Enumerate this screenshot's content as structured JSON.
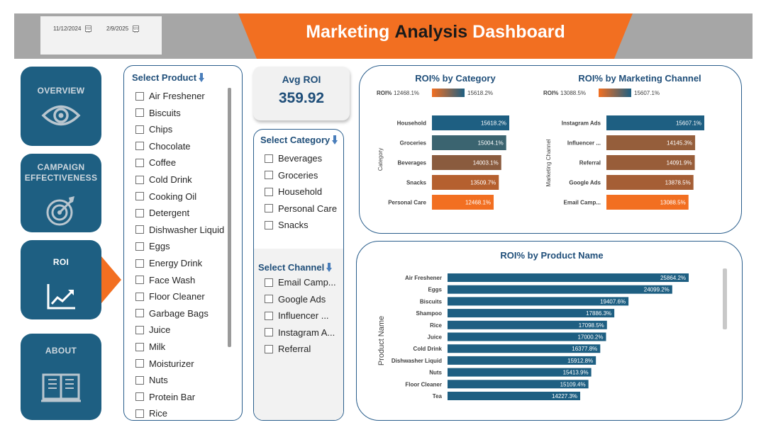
{
  "header": {
    "title_part1": "Marketing",
    "title_part2": "Analysis",
    "title_part3": "Dashboard",
    "start_date": "11/12/2024",
    "end_date": "2/9/2025"
  },
  "nav": {
    "overview": "OVERVIEW",
    "campaign_1": "CAMPAIGN",
    "campaign_2": "EFFECTIVENESS",
    "roi": "ROI",
    "about": "ABOUT"
  },
  "product_slicer": {
    "title": "Select Product",
    "items": [
      "Air Freshener",
      "Biscuits",
      "Chips",
      "Chocolate",
      "Coffee",
      "Cold Drink",
      "Cooking Oil",
      "Detergent",
      "Dishwasher Liquid",
      "Eggs",
      "Energy Drink",
      "Face Wash",
      "Floor Cleaner",
      "Garbage Bags",
      "Juice",
      "Milk",
      "Moisturizer",
      "Nuts",
      "Protein Bar",
      "Rice"
    ]
  },
  "kpi": {
    "label": "Avg ROI",
    "value": "359.92"
  },
  "category_slicer": {
    "title": "Select Category",
    "items": [
      "Beverages",
      "Groceries",
      "Household",
      "Personal Care",
      "Snacks"
    ]
  },
  "channel_slicer": {
    "title": "Select Channel",
    "items": [
      "Email Camp...",
      "Google Ads",
      "Influencer ...",
      "Instagram A...",
      "Referral"
    ]
  },
  "colors": {
    "navy": "#1e5f82",
    "orange": "#f26f21",
    "title_blue": "#1f4e79",
    "header_gray": "#a6a6a6"
  },
  "chart_data": [
    {
      "type": "bar",
      "orientation": "horizontal",
      "title": "ROI% by Category",
      "ylabel": "Category",
      "legend": {
        "label": "ROI%",
        "min": "12468.1%",
        "max": "15618.2%"
      },
      "categories": [
        "Household",
        "Groceries",
        "Beverages",
        "Snacks",
        "Personal Care"
      ],
      "values": [
        15618.2,
        15004.1,
        14003.1,
        13509.7,
        12468.1
      ],
      "value_labels": [
        "15618.2%",
        "15004.1%",
        "14003.1%",
        "13509.7%",
        "12468.1%"
      ],
      "colors": [
        "#1e5f82",
        "#3b6470",
        "#8a5b3e",
        "#b5602f",
        "#f26f21"
      ]
    },
    {
      "type": "bar",
      "orientation": "horizontal",
      "title": "ROI% by Marketing Channel",
      "ylabel": "Marketing Channel",
      "legend": {
        "label": "ROI%",
        "min": "13088.5%",
        "max": "15607.1%"
      },
      "categories": [
        "Instagram Ads",
        "Influencer ...",
        "Referral",
        "Google Ads",
        "Email Camp..."
      ],
      "values": [
        15607.1,
        14145.3,
        14091.9,
        13878.5,
        13088.5
      ],
      "value_labels": [
        "15607.1%",
        "14145.3%",
        "14091.9%",
        "13878.5%",
        "13088.5%"
      ],
      "colors": [
        "#1e5f82",
        "#955e3b",
        "#985d39",
        "#a55e35",
        "#f26f21"
      ]
    },
    {
      "type": "bar",
      "orientation": "horizontal",
      "title": "ROI% by Product Name",
      "ylabel": "Product Name",
      "categories": [
        "Air Freshener",
        "Eggs",
        "Biscuits",
        "Shampoo",
        "Rice",
        "Juice",
        "Cold Drink",
        "Dishwasher Liquid",
        "Nuts",
        "Floor Cleaner",
        "Tea"
      ],
      "values": [
        25864.2,
        24099.2,
        19407.6,
        17886.3,
        17098.5,
        17000.2,
        16377.8,
        15912.8,
        15413.9,
        15109.4,
        14227.3
      ],
      "value_labels": [
        "25864.2%",
        "24099.2%",
        "19407.6%",
        "17886.3%",
        "17098.5%",
        "17000.2%",
        "16377.8%",
        "15912.8%",
        "15413.9%",
        "15109.4%",
        "14227.3%"
      ],
      "colors": [
        "#1e5f82"
      ]
    }
  ]
}
